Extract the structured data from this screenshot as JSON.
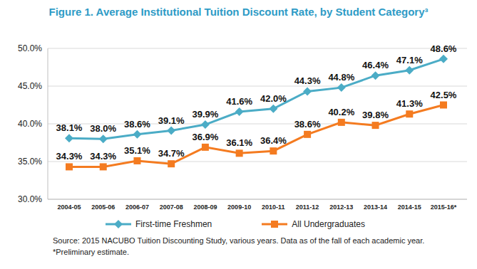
{
  "chart_data": {
    "type": "line",
    "title": "Figure 1. Average Institutional Tuition Discount Rate, by Student Category³",
    "categories": [
      "2004-05",
      "2005-06",
      "2006-07",
      "2007-08",
      "2008-09",
      "2009-10",
      "2010-11",
      "2011-12",
      "2012-13",
      "2013-14",
      "2014-15",
      "2015-16*"
    ],
    "series": [
      {
        "name": "First-time Freshmen",
        "color": "#4BACC6",
        "marker": "diamond",
        "values": [
          38.1,
          38.0,
          38.6,
          39.1,
          39.9,
          41.6,
          42.0,
          44.3,
          44.8,
          46.4,
          47.1,
          48.6
        ],
        "value_labels": [
          "38.1%",
          "38.0%",
          "38.6%",
          "39.1%",
          "39.9%",
          "41.6%",
          "42.0%",
          "44.3%",
          "44.8%",
          "46.4%",
          "47.1%",
          "48.6%"
        ]
      },
      {
        "name": "All Undergraduates",
        "color": "#F47B20",
        "marker": "square",
        "values": [
          34.3,
          34.3,
          35.1,
          34.7,
          36.9,
          36.1,
          36.4,
          38.6,
          40.2,
          39.8,
          41.3,
          42.5
        ],
        "value_labels": [
          "34.3%",
          "34.3%",
          "35.1%",
          "34.7%",
          "36.9%",
          "36.1%",
          "36.4%",
          "38.6%",
          "40.2%",
          "39.8%",
          "41.3%",
          "42.5%"
        ]
      }
    ],
    "ylim": [
      30,
      50
    ],
    "yticks": [
      {
        "value": 30,
        "label": "30.0%"
      },
      {
        "value": 35,
        "label": "35.0%"
      },
      {
        "value": 40,
        "label": "40.0%"
      },
      {
        "value": 45,
        "label": "45.0%"
      },
      {
        "value": 50,
        "label": "50.0%"
      }
    ],
    "grid": true,
    "legend": "bottom",
    "data_labels": true,
    "annotations": [
      "Source: 2015 NACUBO Tuition Discounting Study, various years. Data as of the fall of each academic year.",
      "*Preliminary estimate."
    ]
  }
}
